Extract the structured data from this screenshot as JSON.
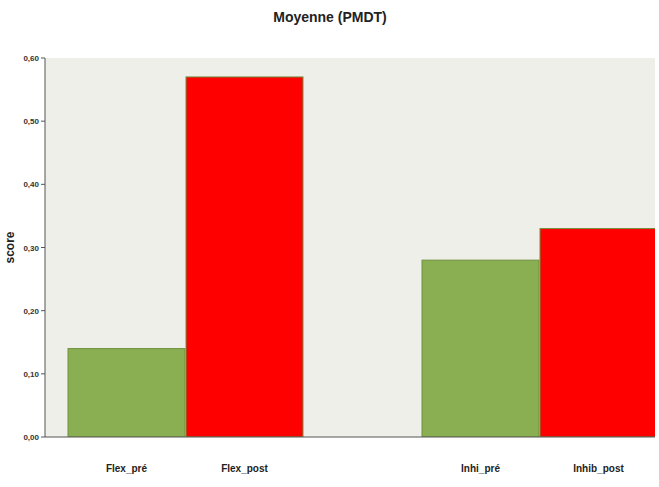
{
  "chart_data": {
    "type": "bar",
    "title": "Moyenne (PMDT)",
    "y_label": "score",
    "categories": [
      "Flex_pré",
      "Flex_post",
      "Inhi_pré",
      "Inhib_post"
    ],
    "values": [
      0.14,
      0.57,
      0.28,
      0.33
    ],
    "colors": [
      "#8aaf52",
      "#ff0000",
      "#8aaf52",
      "#ff0000"
    ],
    "ylim": [
      0,
      0.6
    ],
    "yticks": [
      {
        "value": 0,
        "label": "0,00"
      },
      {
        "value": 0.1,
        "label": "0,10"
      },
      {
        "value": 0.2,
        "label": "0,20"
      },
      {
        "value": 0.3,
        "label": "0,30"
      },
      {
        "value": 0.4,
        "label": "0,40"
      },
      {
        "value": 0.5,
        "label": "0,50"
      },
      {
        "value": 0.6,
        "label": "0,60"
      }
    ],
    "grid": false
  }
}
